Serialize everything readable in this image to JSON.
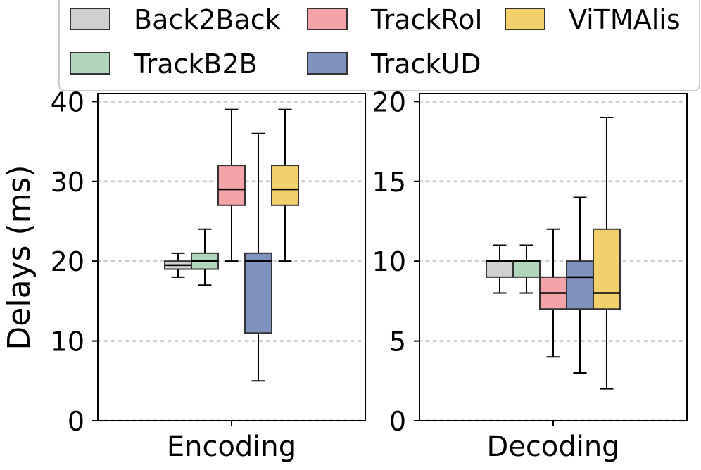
{
  "chart_data": {
    "type": "box",
    "ylabel": "Delays (ms)",
    "legend": {
      "placement": "top",
      "entries": [
        {
          "name": "Back2Back",
          "color": "#d0d0d0"
        },
        {
          "name": "TrackRoI",
          "color": "#f4a3a8"
        },
        {
          "name": "ViTMAlis",
          "color": "#f2d06b"
        },
        {
          "name": "TrackB2B",
          "color": "#b2d6bb"
        },
        {
          "name": "TrackUD",
          "color": "#7f91bd"
        }
      ]
    },
    "panels": [
      {
        "xlabel": "Encoding",
        "ylim": [
          0,
          41
        ],
        "yticks": [
          0,
          10,
          20,
          30,
          40
        ],
        "grid": true,
        "boxes": [
          {
            "series": "Back2Back",
            "whislo": 18,
            "q1": 19,
            "med": 19.5,
            "q3": 20,
            "whishi": 21
          },
          {
            "series": "TrackB2B",
            "whislo": 17,
            "q1": 19,
            "med": 20,
            "q3": 21,
            "whishi": 24
          },
          {
            "series": "TrackRoI",
            "whislo": 20,
            "q1": 27,
            "med": 29,
            "q3": 32,
            "whishi": 39
          },
          {
            "series": "TrackUD",
            "whislo": 5,
            "q1": 11,
            "med": 20,
            "q3": 21,
            "whishi": 36
          },
          {
            "series": "ViTMAlis",
            "whislo": 20,
            "q1": 27,
            "med": 29,
            "q3": 32,
            "whishi": 39
          }
        ]
      },
      {
        "xlabel": "Decoding",
        "ylim": [
          0,
          20.5
        ],
        "yticks": [
          0,
          5,
          10,
          15,
          20
        ],
        "grid": true,
        "boxes": [
          {
            "series": "Back2Back",
            "whislo": 8,
            "q1": 9,
            "med": 10,
            "q3": 10,
            "whishi": 11
          },
          {
            "series": "TrackB2B",
            "whislo": 8,
            "q1": 9,
            "med": 10,
            "q3": 10,
            "whishi": 11
          },
          {
            "series": "TrackRoI",
            "whislo": 4,
            "q1": 7,
            "med": 8,
            "q3": 9,
            "whishi": 12
          },
          {
            "series": "TrackUD",
            "whislo": 3,
            "q1": 7,
            "med": 9,
            "q3": 10,
            "whishi": 14
          },
          {
            "series": "ViTMAlis",
            "whislo": 2,
            "q1": 7,
            "med": 8,
            "q3": 12,
            "whishi": 19
          }
        ]
      }
    ]
  }
}
